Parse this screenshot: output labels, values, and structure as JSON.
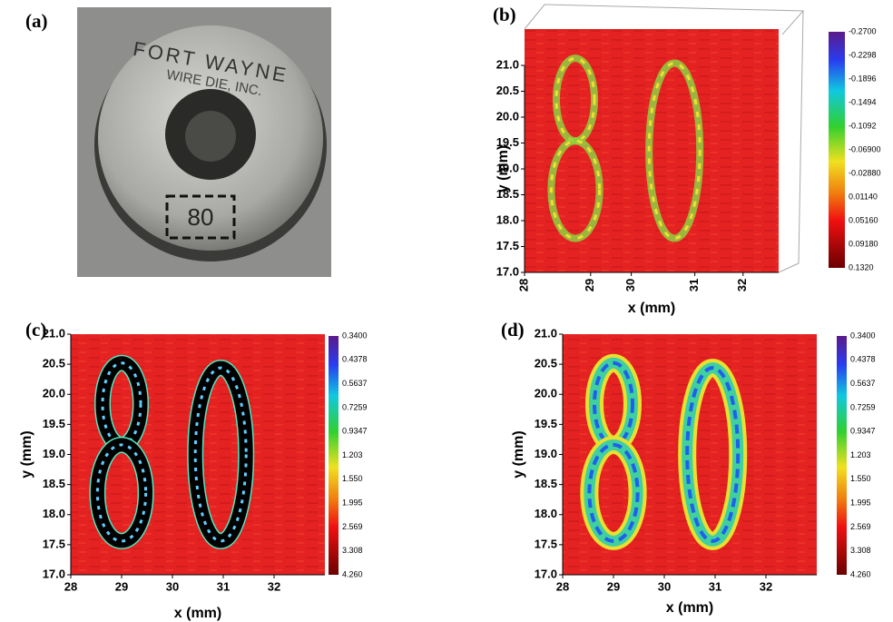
{
  "panels": [
    {
      "label": "(a)",
      "photo_text": [
        "FORT WAYNE",
        "WIRE DIE, INC.",
        "80"
      ]
    },
    {
      "label": "(b)",
      "xlabel": "x (mm)",
      "ylabel": "y (mm)",
      "xticks": [
        "28",
        "29",
        "30",
        "31",
        "32"
      ],
      "yticks": [
        "21.0",
        "20.5",
        "20.0",
        "19.5",
        "19.0",
        "18.5",
        "18.0",
        "17.5",
        "17.0"
      ],
      "colorbar": [
        "-0.2700",
        "-0.2298",
        "-0.1896",
        "-0.1494",
        "-0.1092",
        "-0.06900",
        "-0.02880",
        "0.01140",
        "0.05160",
        "0.09180",
        "0.1320"
      ]
    },
    {
      "label": "(c)",
      "xlabel": "x (mm)",
      "ylabel": "y (mm)",
      "xticks": [
        "28",
        "29",
        "30",
        "31",
        "32"
      ],
      "yticks": [
        "21.0",
        "20.5",
        "20.0",
        "19.5",
        "19.0",
        "18.5",
        "18.0",
        "17.5",
        "17.0"
      ],
      "colorbar": [
        "0.3400",
        "0.4378",
        "0.5637",
        "0.7259",
        "0.9347",
        "1.203",
        "1.550",
        "1.995",
        "2.569",
        "3.308",
        "4.260"
      ]
    },
    {
      "label": "(d)",
      "xlabel": "x (mm)",
      "ylabel": "y (mm)",
      "xticks": [
        "28",
        "29",
        "30",
        "31",
        "32"
      ],
      "yticks": [
        "21.0",
        "20.5",
        "20.0",
        "19.5",
        "19.0",
        "18.5",
        "18.0",
        "17.5",
        "17.0"
      ],
      "colorbar": [
        "0.3400",
        "0.4378",
        "0.5637",
        "0.7259",
        "0.9347",
        "1.203",
        "1.550",
        "1.995",
        "2.569",
        "3.308",
        "4.260"
      ]
    }
  ]
}
